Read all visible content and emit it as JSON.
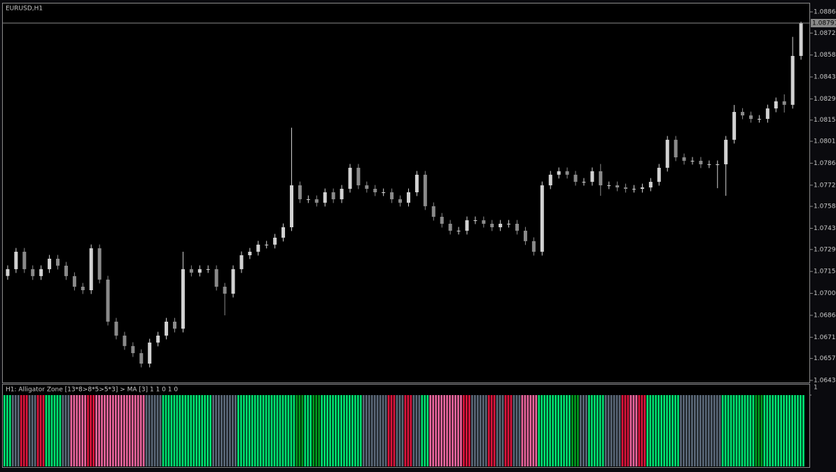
{
  "chart_data": [
    {
      "type": "candlestick",
      "title": "EURUSD,H1",
      "up_color": "#d2d2d2",
      "down_color": "#8a8a8a",
      "open": [
        1.0712,
        1.07165,
        1.0728,
        1.07165,
        1.07119,
        1.07165,
        1.07234,
        1.07188,
        1.07119,
        1.07049,
        1.07026,
        1.07303,
        1.07096,
        1.06818,
        1.06726,
        1.06657,
        1.0661,
        1.06541,
        1.0668,
        1.06726,
        1.06818,
        1.06772,
        1.07165,
        1.07142,
        1.07165,
        1.07165,
        1.07049,
        1.07003,
        1.07165,
        1.07257,
        1.0728,
        1.07327,
        1.07327,
        1.07373,
        1.07442,
        1.07719,
        1.07627,
        1.07627,
        1.07604,
        1.07673,
        1.07627,
        1.07696,
        1.07835,
        1.07719,
        1.07696,
        1.07673,
        1.07673,
        1.07627,
        1.07604,
        1.07673,
        1.07789,
        1.07581,
        1.07511,
        1.07465,
        1.07419,
        1.07419,
        1.07488,
        1.07488,
        1.07465,
        1.07442,
        1.07465,
        1.07465,
        1.07419,
        1.0735,
        1.0728,
        1.07719,
        1.07789,
        1.07812,
        1.07789,
        1.07742,
        1.07742,
        1.07812,
        1.07719,
        1.07719,
        1.07705,
        1.07696,
        1.07696,
        1.07705,
        1.07742,
        1.07835,
        1.0802,
        1.07904,
        1.07881,
        1.07881,
        1.07858,
        1.07858,
        1.07858,
        1.0802,
        1.08204,
        1.08181,
        1.08158,
        1.08158,
        1.08227,
        1.08274,
        1.08251,
        1.08574
      ],
      "high": [
        1.0719,
        1.07305,
        1.07305,
        1.0719,
        1.0719,
        1.07259,
        1.07259,
        1.07213,
        1.07144,
        1.07074,
        1.07328,
        1.07328,
        1.07121,
        1.06843,
        1.06751,
        1.06682,
        1.06635,
        1.06705,
        1.06751,
        1.06843,
        1.06843,
        1.0728,
        1.0719,
        1.0719,
        1.0719,
        1.0719,
        1.07074,
        1.0719,
        1.07282,
        1.07305,
        1.07352,
        1.07352,
        1.07398,
        1.07467,
        1.081,
        1.07744,
        1.07652,
        1.07652,
        1.07698,
        1.07698,
        1.07721,
        1.0786,
        1.0786,
        1.07744,
        1.07721,
        1.07698,
        1.07698,
        1.07652,
        1.07698,
        1.07814,
        1.07814,
        1.07606,
        1.07536,
        1.0749,
        1.07444,
        1.07513,
        1.07513,
        1.07513,
        1.0749,
        1.0749,
        1.0749,
        1.0749,
        1.07444,
        1.07375,
        1.07744,
        1.07814,
        1.07837,
        1.07837,
        1.07814,
        1.07767,
        1.07837,
        1.0786,
        1.07744,
        1.07744,
        1.0773,
        1.07721,
        1.0773,
        1.07767,
        1.0786,
        1.08045,
        1.08045,
        1.07929,
        1.07906,
        1.07906,
        1.07883,
        1.07883,
        1.08045,
        1.0825,
        1.08229,
        1.08206,
        1.08183,
        1.08252,
        1.08299,
        1.0832,
        1.087,
        1.088
      ],
      "low": [
        1.07095,
        1.0714,
        1.0714,
        1.07094,
        1.07094,
        1.0714,
        1.07163,
        1.07094,
        1.07024,
        1.07001,
        1.07001,
        1.07071,
        1.06793,
        1.06701,
        1.06632,
        1.06585,
        1.06516,
        1.06516,
        1.06655,
        1.06701,
        1.06747,
        1.06747,
        1.07117,
        1.07117,
        1.0714,
        1.07024,
        1.0686,
        1.06978,
        1.0714,
        1.07232,
        1.07255,
        1.07302,
        1.07302,
        1.07348,
        1.07417,
        1.07602,
        1.07602,
        1.07579,
        1.07579,
        1.07602,
        1.07602,
        1.07671,
        1.07694,
        1.07671,
        1.07648,
        1.07648,
        1.07602,
        1.07579,
        1.07579,
        1.07648,
        1.07556,
        1.07486,
        1.0744,
        1.07394,
        1.07394,
        1.07394,
        1.07463,
        1.0744,
        1.07417,
        1.07417,
        1.0744,
        1.07394,
        1.07325,
        1.07255,
        1.07255,
        1.07694,
        1.07764,
        1.07764,
        1.07717,
        1.07717,
        1.07717,
        1.0765,
        1.07694,
        1.0768,
        1.07671,
        1.07671,
        1.07671,
        1.0768,
        1.07717,
        1.0781,
        1.07879,
        1.07856,
        1.07856,
        1.07833,
        1.07833,
        1.077,
        1.0765,
        1.07995,
        1.08156,
        1.08133,
        1.08133,
        1.08133,
        1.08202,
        1.082,
        1.08226,
        1.08549
      ],
      "close": [
        1.07165,
        1.0728,
        1.07165,
        1.07119,
        1.07165,
        1.07234,
        1.07188,
        1.07119,
        1.07049,
        1.07026,
        1.07303,
        1.07096,
        1.06818,
        1.06726,
        1.06657,
        1.0661,
        1.06541,
        1.0668,
        1.06726,
        1.06818,
        1.06772,
        1.07165,
        1.07142,
        1.07165,
        1.07165,
        1.07049,
        1.07003,
        1.07165,
        1.07257,
        1.0728,
        1.07327,
        1.07327,
        1.07373,
        1.07442,
        1.07719,
        1.07627,
        1.07627,
        1.07604,
        1.07673,
        1.07627,
        1.07696,
        1.07835,
        1.07719,
        1.07696,
        1.07673,
        1.07673,
        1.07627,
        1.07604,
        1.07673,
        1.07789,
        1.07581,
        1.07511,
        1.07465,
        1.07419,
        1.07419,
        1.07488,
        1.07488,
        1.07465,
        1.07442,
        1.07465,
        1.07465,
        1.07419,
        1.0735,
        1.0728,
        1.07719,
        1.07789,
        1.07812,
        1.07789,
        1.07742,
        1.07742,
        1.07812,
        1.07719,
        1.07719,
        1.07705,
        1.07696,
        1.07696,
        1.07705,
        1.07742,
        1.07835,
        1.0802,
        1.07904,
        1.07881,
        1.07881,
        1.07858,
        1.07858,
        1.07858,
        1.0802,
        1.08204,
        1.08181,
        1.08158,
        1.08158,
        1.08227,
        1.08274,
        1.08251,
        1.08574,
        1.08791
      ],
      "last_price": 1.08791,
      "ylim": [
        1.0643,
        1.08865
      ],
      "yticks": [
        1.08865,
        1.08725,
        {
          "value": 1.0858,
          "label": "1.08580"
        },
        1.08435,
        {
          "value": 1.0829,
          "label": "1.08290"
        },
        {
          "value": 1.0815,
          "label": "1.08150"
        },
        {
          "value": 1.0801,
          "label": "1.08010"
        },
        1.07865,
        {
          "value": 1.0772,
          "label": "1.07720"
        },
        {
          "value": 1.0758,
          "label": "1.07580"
        },
        1.07435,
        1.07295,
        {
          "value": 1.0715,
          "label": "1.07150"
        },
        1.07005,
        {
          "value": 1.0686,
          "label": "1.06860"
        },
        1.06715,
        1.06575,
        {
          "value": 1.0643,
          "label": "1.06430"
        }
      ]
    },
    {
      "type": "histogram",
      "title": "H1: Alligator Zone [13*8>8*5>5*3] > MA [3]  1 1 0 1 0",
      "ylim": [
        0,
        1
      ],
      "yticks": [
        1
      ],
      "values": [
        1,
        1,
        1,
        1,
        1,
        1,
        1,
        1,
        1,
        1,
        1,
        1,
        1,
        1,
        1,
        1,
        1,
        1,
        1,
        1,
        1,
        1,
        1,
        1,
        1,
        1,
        1,
        1,
        1,
        1,
        1,
        1,
        1,
        1,
        1,
        1,
        1,
        1,
        1,
        1,
        1,
        1,
        1,
        1,
        1,
        1,
        1,
        1,
        1,
        1,
        1,
        1,
        1,
        1,
        1,
        1,
        1,
        1,
        1,
        1,
        1,
        1,
        1,
        1,
        1,
        1,
        1,
        1,
        1,
        1,
        1,
        1,
        1,
        1,
        1,
        1,
        1,
        1,
        1,
        1,
        1,
        1,
        1,
        1,
        1,
        1,
        1,
        1,
        1,
        1,
        1,
        1,
        1,
        1,
        1,
        1
      ],
      "colors": [
        "#00e070",
        "#5a6878",
        "#dc143c",
        "#5a6878",
        "#dc143c",
        "#00e070",
        "#00e070",
        "#5a6878",
        "#e8649c",
        "#e8649c",
        "#dc143c",
        "#e8649c",
        "#e8649c",
        "#e8649c",
        "#e8649c",
        "#e8649c",
        "#e8649c",
        "#5a6878",
        "#5a6878",
        "#00e070",
        "#00e070",
        "#00e070",
        "#00e070",
        "#00e070",
        "#00e070",
        "#5a6878",
        "#5a6878",
        "#5a6878",
        "#00e070",
        "#00e070",
        "#00e070",
        "#00e070",
        "#00e070",
        "#00e070",
        "#00e070",
        "#009a20",
        "#00e070",
        "#009a20",
        "#00e070",
        "#00e070",
        "#00e070",
        "#00e070",
        "#00e070",
        "#5a6878",
        "#5a6878",
        "#5a6878",
        "#dc143c",
        "#5a6878",
        "#dc143c",
        "#5a6878",
        "#00e070",
        "#e8649c",
        "#e8649c",
        "#e8649c",
        "#e8649c",
        "#dc143c",
        "#5a6878",
        "#5a6878",
        "#dc143c",
        "#5a6878",
        "#dc143c",
        "#5a6878",
        "#e8649c",
        "#e8649c",
        "#00e070",
        "#00e070",
        "#00e070",
        "#00e070",
        "#009a20",
        "#5a6878",
        "#00e070",
        "#00e070",
        "#5a6878",
        "#5a6878",
        "#dc143c",
        "#e8649c",
        "#dc143c",
        "#00e070",
        "#00e070",
        "#00e070",
        "#00e070",
        "#5a6878",
        "#5a6878",
        "#5a6878",
        "#5a6878",
        "#5a6878",
        "#00e070",
        "#00e070",
        "#00e070",
        "#00e070",
        "#009a20",
        "#00e070",
        "#00e070",
        "#00e070",
        "#00e070",
        "#00e070"
      ]
    }
  ]
}
